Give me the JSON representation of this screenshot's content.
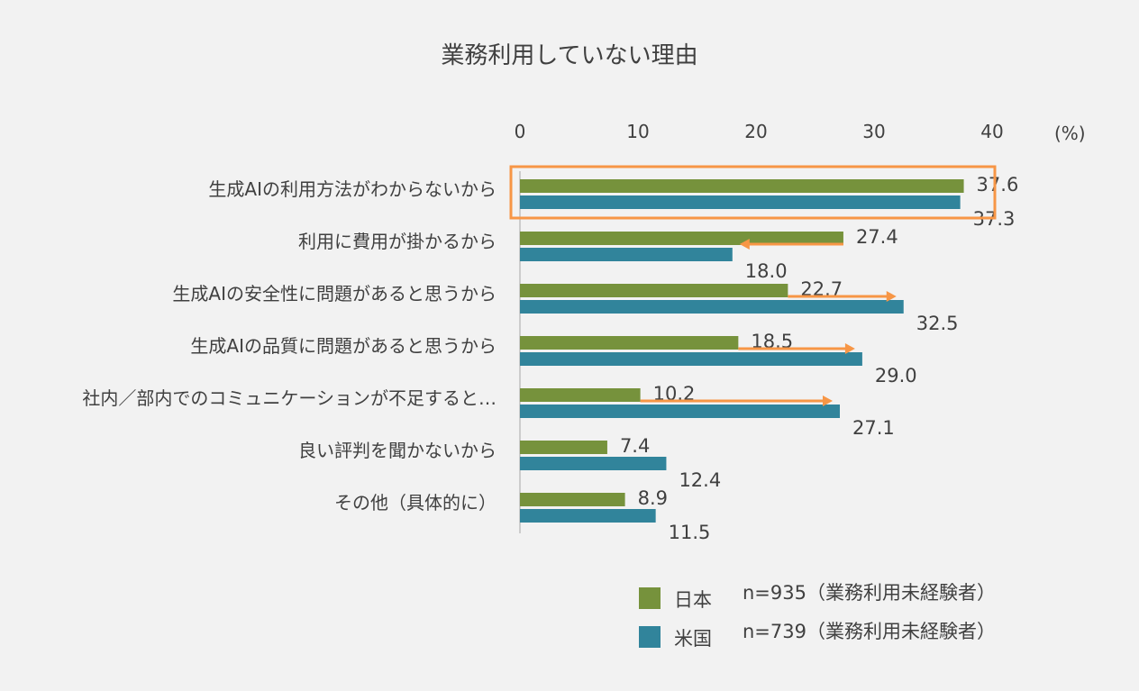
{
  "chart_data": {
    "type": "bar",
    "orientation": "horizontal",
    "title": "業務利用していない理由",
    "unit_label": "(%)",
    "xlim": [
      0,
      40
    ],
    "ticks": [
      0,
      10,
      20,
      30,
      40
    ],
    "categories": [
      "生成AIの利用方法がわからないから",
      "利用に費用が掛かるから",
      "生成AIの安全性に問題があると思うから",
      "生成AIの品質に問題があると思うから",
      "社内／部内でのコミュニケーションが不足すると…",
      "良い評判を聞かないから",
      "その他（具体的に）"
    ],
    "series": [
      {
        "name": "日本",
        "note": "n=935（業務利用未経験者）",
        "color": "#76923c",
        "values": [
          37.6,
          27.4,
          22.7,
          18.5,
          10.2,
          7.4,
          8.9
        ],
        "labels": [
          "37.6",
          "27.4",
          "22.7",
          "18.5",
          "10.2",
          "7.4",
          "8.9"
        ]
      },
      {
        "name": "米国",
        "note": "n=739（業務利用未経験者）",
        "color": "#31849b",
        "values": [
          37.3,
          18.0,
          32.5,
          29.0,
          27.1,
          12.4,
          11.5
        ],
        "labels": [
          "37.3",
          "18.0",
          "32.5",
          "29.0",
          "27.1",
          "12.4",
          "11.5"
        ]
      }
    ],
    "highlight_category_index": 0,
    "highlight_color": "#f79646",
    "arrows": [
      {
        "category_index": 1,
        "from": 27.4,
        "to": 18.0
      },
      {
        "category_index": 2,
        "from": 22.7,
        "to": 32.5
      },
      {
        "category_index": 3,
        "from": 18.5,
        "to": 29.0
      },
      {
        "category_index": 4,
        "from": 10.2,
        "to": 27.1
      }
    ],
    "arrow_color": "#f79646",
    "legend_position": "bottom-right",
    "grid": false
  }
}
